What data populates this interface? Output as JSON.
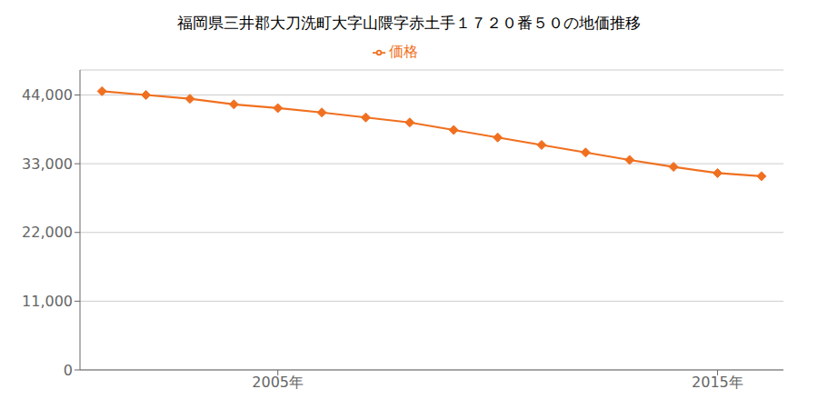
{
  "chart_data": {
    "type": "line",
    "title": "福岡県三井郡大刀洗町大字山隈字赤土手１７２０番５０の地価推移",
    "x": [
      2001,
      2002,
      2003,
      2004,
      2005,
      2006,
      2007,
      2008,
      2009,
      2010,
      2011,
      2012,
      2013,
      2014,
      2015,
      2016
    ],
    "series": [
      {
        "name": "価格",
        "color": "#f07020",
        "marker": "diamond",
        "values": [
          44600,
          44000,
          43400,
          42500,
          41900,
          41200,
          40400,
          39600,
          38400,
          37200,
          36000,
          34800,
          33600,
          32500,
          31500,
          31000
        ]
      }
    ],
    "xlim": [
      2000.5,
      2016.5
    ],
    "xticks": [
      {
        "value": 2005,
        "label": "2005年"
      },
      {
        "value": 2015,
        "label": "2015年"
      }
    ],
    "ylim": [
      0,
      48000
    ],
    "yticks": [
      0,
      {
        "value": 11000,
        "label": "11,000"
      },
      {
        "value": 22000,
        "label": "22,000"
      },
      {
        "value": 33000,
        "label": "33,000"
      },
      {
        "value": 44000,
        "label": "44,000"
      }
    ],
    "grid": "y",
    "legend": "top"
  }
}
